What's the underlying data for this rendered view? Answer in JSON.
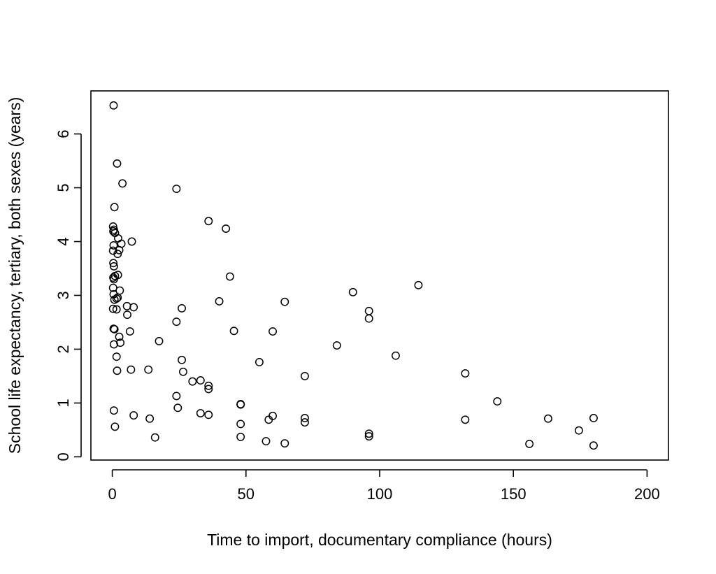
{
  "chart_data": {
    "type": "scatter",
    "title": "",
    "xlabel": "Time to import, documentary compliance (hours)",
    "ylabel": "School life expectancy, tertiary, both sexes (years)",
    "xlim": [
      -8,
      208
    ],
    "ylim": [
      -0.06,
      6.8
    ],
    "xticks": [
      0,
      50,
      100,
      150,
      200
    ],
    "yticks": [
      0,
      1,
      2,
      3,
      4,
      5,
      6
    ],
    "xtick_labels": [
      "0",
      "50",
      "100",
      "150",
      "200"
    ],
    "ytick_labels": [
      "0",
      "1",
      "2",
      "3",
      "4",
      "5",
      "6"
    ],
    "grid": false,
    "marker": "open-circle",
    "marker_color": "#000000",
    "points": [
      {
        "x": 0.5,
        "y": 6.53
      },
      {
        "x": 1.8,
        "y": 5.45
      },
      {
        "x": 3.8,
        "y": 5.08
      },
      {
        "x": 24.0,
        "y": 4.98
      },
      {
        "x": 0.8,
        "y": 4.64
      },
      {
        "x": 36.0,
        "y": 4.38
      },
      {
        "x": 42.5,
        "y": 4.24
      },
      {
        "x": 0.3,
        "y": 4.28
      },
      {
        "x": 0.6,
        "y": 4.22
      },
      {
        "x": 1.0,
        "y": 4.16
      },
      {
        "x": 0.4,
        "y": 4.19
      },
      {
        "x": 2.2,
        "y": 4.06
      },
      {
        "x": 7.3,
        "y": 4.0
      },
      {
        "x": 3.4,
        "y": 3.96
      },
      {
        "x": 0.5,
        "y": 3.93
      },
      {
        "x": 2.6,
        "y": 3.84
      },
      {
        "x": 0.3,
        "y": 3.83
      },
      {
        "x": 2.0,
        "y": 3.77
      },
      {
        "x": 0.4,
        "y": 3.6
      },
      {
        "x": 0.6,
        "y": 3.54
      },
      {
        "x": 2.1,
        "y": 3.38
      },
      {
        "x": 1.0,
        "y": 3.36
      },
      {
        "x": 0.4,
        "y": 3.33
      },
      {
        "x": 0.6,
        "y": 3.3
      },
      {
        "x": 44.0,
        "y": 3.35
      },
      {
        "x": 114.5,
        "y": 3.19
      },
      {
        "x": 0.3,
        "y": 3.14
      },
      {
        "x": 2.8,
        "y": 3.09
      },
      {
        "x": 90.0,
        "y": 3.06
      },
      {
        "x": 0.5,
        "y": 3.02
      },
      {
        "x": 1.6,
        "y": 2.94
      },
      {
        "x": 2.0,
        "y": 2.96
      },
      {
        "x": 0.8,
        "y": 2.92
      },
      {
        "x": 40.0,
        "y": 2.89
      },
      {
        "x": 64.5,
        "y": 2.88
      },
      {
        "x": 5.5,
        "y": 2.8
      },
      {
        "x": 8.0,
        "y": 2.78
      },
      {
        "x": 26.0,
        "y": 2.76
      },
      {
        "x": 0.3,
        "y": 2.75
      },
      {
        "x": 1.6,
        "y": 2.74
      },
      {
        "x": 96.0,
        "y": 2.71
      },
      {
        "x": 5.6,
        "y": 2.64
      },
      {
        "x": 96.0,
        "y": 2.57
      },
      {
        "x": 24.0,
        "y": 2.51
      },
      {
        "x": 0.5,
        "y": 2.38
      },
      {
        "x": 0.8,
        "y": 2.37
      },
      {
        "x": 6.6,
        "y": 2.33
      },
      {
        "x": 45.5,
        "y": 2.34
      },
      {
        "x": 60.0,
        "y": 2.33
      },
      {
        "x": 2.6,
        "y": 2.23
      },
      {
        "x": 17.5,
        "y": 2.15
      },
      {
        "x": 3.0,
        "y": 2.12
      },
      {
        "x": 0.6,
        "y": 2.09
      },
      {
        "x": 84.0,
        "y": 2.07
      },
      {
        "x": 106.0,
        "y": 1.88
      },
      {
        "x": 1.6,
        "y": 1.86
      },
      {
        "x": 26.0,
        "y": 1.8
      },
      {
        "x": 55.0,
        "y": 1.76
      },
      {
        "x": 1.8,
        "y": 1.6
      },
      {
        "x": 7.0,
        "y": 1.62
      },
      {
        "x": 13.5,
        "y": 1.62
      },
      {
        "x": 26.5,
        "y": 1.58
      },
      {
        "x": 132.0,
        "y": 1.55
      },
      {
        "x": 72.0,
        "y": 1.5
      },
      {
        "x": 33.0,
        "y": 1.42
      },
      {
        "x": 30.0,
        "y": 1.4
      },
      {
        "x": 36.0,
        "y": 1.32
      },
      {
        "x": 36.0,
        "y": 1.26
      },
      {
        "x": 24.0,
        "y": 1.13
      },
      {
        "x": 144.0,
        "y": 1.03
      },
      {
        "x": 48.0,
        "y": 0.97
      },
      {
        "x": 48.0,
        "y": 0.98
      },
      {
        "x": 24.5,
        "y": 0.91
      },
      {
        "x": 0.6,
        "y": 0.86
      },
      {
        "x": 33.0,
        "y": 0.81
      },
      {
        "x": 36.0,
        "y": 0.78
      },
      {
        "x": 8.0,
        "y": 0.77
      },
      {
        "x": 60.0,
        "y": 0.76
      },
      {
        "x": 72.0,
        "y": 0.72
      },
      {
        "x": 180.0,
        "y": 0.72
      },
      {
        "x": 14.0,
        "y": 0.71
      },
      {
        "x": 163.0,
        "y": 0.71
      },
      {
        "x": 58.5,
        "y": 0.69
      },
      {
        "x": 132.0,
        "y": 0.69
      },
      {
        "x": 72.0,
        "y": 0.64
      },
      {
        "x": 48.0,
        "y": 0.61
      },
      {
        "x": 1.0,
        "y": 0.56
      },
      {
        "x": 174.5,
        "y": 0.49
      },
      {
        "x": 96.0,
        "y": 0.43
      },
      {
        "x": 96.0,
        "y": 0.38
      },
      {
        "x": 48.0,
        "y": 0.37
      },
      {
        "x": 16.0,
        "y": 0.36
      },
      {
        "x": 57.5,
        "y": 0.29
      },
      {
        "x": 64.5,
        "y": 0.25
      },
      {
        "x": 156.0,
        "y": 0.24
      },
      {
        "x": 180.0,
        "y": 0.21
      }
    ]
  }
}
